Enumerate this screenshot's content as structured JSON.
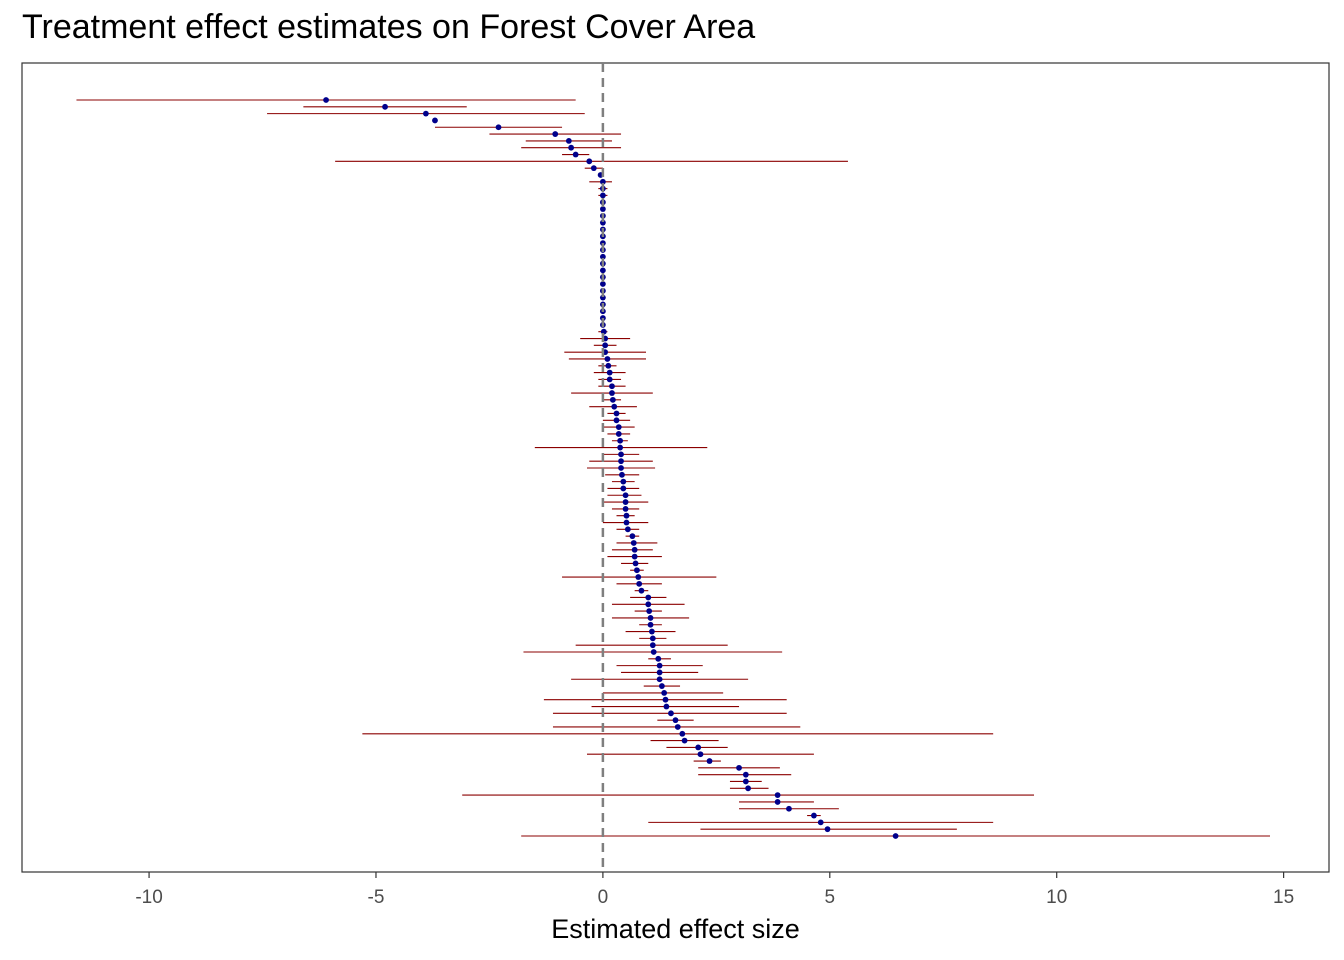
{
  "chart_data": {
    "type": "scatter",
    "title": "Treatment effect estimates on Forest Cover Area",
    "xlabel": "Estimated effect size",
    "ylabel": "",
    "xlim": [
      -12.8,
      16.0
    ],
    "xticks": [
      -10,
      -5,
      0,
      5,
      10,
      15
    ],
    "xtick_labels": [
      "-10",
      "-5",
      "0",
      "5",
      "10",
      "15"
    ],
    "reference_line_x": 0,
    "grid": false,
    "legend": "none",
    "colors": {
      "point": "#00008b",
      "interval": "#8b0000",
      "reference": "#7f7f7f",
      "frame": "#333333"
    },
    "estimates": [
      {
        "est": -6.1,
        "lo": -11.6,
        "hi": -0.6
      },
      {
        "est": -4.8,
        "lo": -6.6,
        "hi": -3.0
      },
      {
        "est": -3.9,
        "lo": -7.4,
        "hi": -0.4
      },
      {
        "est": -3.7,
        "lo": -3.7,
        "hi": -3.7
      },
      {
        "est": -2.3,
        "lo": -3.7,
        "hi": -0.9
      },
      {
        "est": -1.05,
        "lo": -2.5,
        "hi": 0.4
      },
      {
        "est": -0.75,
        "lo": -1.7,
        "hi": 0.2
      },
      {
        "est": -0.7,
        "lo": -1.8,
        "hi": 0.4
      },
      {
        "est": -0.6,
        "lo": -0.9,
        "hi": -0.3
      },
      {
        "est": -0.3,
        "lo": -5.9,
        "hi": 5.4
      },
      {
        "est": -0.2,
        "lo": -0.4,
        "hi": 0.0
      },
      {
        "est": -0.05,
        "lo": -0.1,
        "hi": 0.0
      },
      {
        "est": 0.0,
        "lo": -0.3,
        "hi": 0.2
      },
      {
        "est": 0.0,
        "lo": -0.1,
        "hi": 0.1
      },
      {
        "est": 0.0,
        "lo": -0.1,
        "hi": 0.1
      },
      {
        "est": 0.0,
        "lo": 0.0,
        "hi": 0.0
      },
      {
        "est": 0.0,
        "lo": 0.0,
        "hi": 0.0
      },
      {
        "est": 0.0,
        "lo": 0.0,
        "hi": 0.0
      },
      {
        "est": 0.0,
        "lo": 0.0,
        "hi": 0.0
      },
      {
        "est": 0.0,
        "lo": 0.0,
        "hi": 0.0
      },
      {
        "est": 0.0,
        "lo": 0.0,
        "hi": 0.0
      },
      {
        "est": 0.0,
        "lo": 0.0,
        "hi": 0.0
      },
      {
        "est": 0.0,
        "lo": 0.0,
        "hi": 0.0
      },
      {
        "est": 0.0,
        "lo": 0.0,
        "hi": 0.0
      },
      {
        "est": 0.0,
        "lo": 0.0,
        "hi": 0.0
      },
      {
        "est": 0.0,
        "lo": 0.0,
        "hi": 0.0
      },
      {
        "est": 0.0,
        "lo": 0.0,
        "hi": 0.0
      },
      {
        "est": 0.0,
        "lo": 0.0,
        "hi": 0.0
      },
      {
        "est": 0.0,
        "lo": 0.0,
        "hi": 0.0
      },
      {
        "est": 0.0,
        "lo": 0.0,
        "hi": 0.0
      },
      {
        "est": 0.0,
        "lo": 0.0,
        "hi": 0.0
      },
      {
        "est": 0.0,
        "lo": 0.0,
        "hi": 0.0
      },
      {
        "est": 0.0,
        "lo": 0.0,
        "hi": 0.0
      },
      {
        "est": 0.0,
        "lo": 0.0,
        "hi": 0.0
      },
      {
        "est": 0.02,
        "lo": -0.1,
        "hi": 0.1
      },
      {
        "est": 0.05,
        "lo": -0.5,
        "hi": 0.6
      },
      {
        "est": 0.05,
        "lo": -0.2,
        "hi": 0.3
      },
      {
        "est": 0.05,
        "lo": -0.85,
        "hi": 0.95
      },
      {
        "est": 0.1,
        "lo": -0.75,
        "hi": 0.95
      },
      {
        "est": 0.12,
        "lo": -0.1,
        "hi": 0.3
      },
      {
        "est": 0.15,
        "lo": -0.2,
        "hi": 0.5
      },
      {
        "est": 0.15,
        "lo": -0.1,
        "hi": 0.4
      },
      {
        "est": 0.2,
        "lo": -0.1,
        "hi": 0.5
      },
      {
        "est": 0.2,
        "lo": -0.7,
        "hi": 1.1
      },
      {
        "est": 0.22,
        "lo": 0.0,
        "hi": 0.4
      },
      {
        "est": 0.25,
        "lo": -0.3,
        "hi": 0.75
      },
      {
        "est": 0.3,
        "lo": 0.1,
        "hi": 0.5
      },
      {
        "est": 0.3,
        "lo": 0.0,
        "hi": 0.6
      },
      {
        "est": 0.35,
        "lo": 0.0,
        "hi": 0.7
      },
      {
        "est": 0.35,
        "lo": 0.1,
        "hi": 0.6
      },
      {
        "est": 0.38,
        "lo": 0.2,
        "hi": 0.55
      },
      {
        "est": 0.38,
        "lo": -1.5,
        "hi": 2.3
      },
      {
        "est": 0.4,
        "lo": 0.0,
        "hi": 0.8
      },
      {
        "est": 0.4,
        "lo": -0.3,
        "hi": 1.1
      },
      {
        "est": 0.4,
        "lo": -0.35,
        "hi": 1.15
      },
      {
        "est": 0.42,
        "lo": 0.05,
        "hi": 0.8
      },
      {
        "est": 0.45,
        "lo": 0.2,
        "hi": 0.7
      },
      {
        "est": 0.45,
        "lo": 0.1,
        "hi": 0.8
      },
      {
        "est": 0.5,
        "lo": 0.1,
        "hi": 0.85
      },
      {
        "est": 0.5,
        "lo": 0.0,
        "hi": 1.0
      },
      {
        "est": 0.5,
        "lo": 0.2,
        "hi": 0.8
      },
      {
        "est": 0.52,
        "lo": 0.3,
        "hi": 0.7
      },
      {
        "est": 0.52,
        "lo": 0.0,
        "hi": 1.0
      },
      {
        "est": 0.55,
        "lo": 0.3,
        "hi": 0.8
      },
      {
        "est": 0.65,
        "lo": 0.5,
        "hi": 0.8
      },
      {
        "est": 0.68,
        "lo": 0.3,
        "hi": 1.2
      },
      {
        "est": 0.7,
        "lo": 0.2,
        "hi": 1.1
      },
      {
        "est": 0.7,
        "lo": 0.1,
        "hi": 1.3
      },
      {
        "est": 0.72,
        "lo": 0.4,
        "hi": 1.0
      },
      {
        "est": 0.75,
        "lo": 0.6,
        "hi": 0.9
      },
      {
        "est": 0.78,
        "lo": -0.9,
        "hi": 2.5
      },
      {
        "est": 0.8,
        "lo": 0.3,
        "hi": 1.3
      },
      {
        "est": 0.85,
        "lo": 0.7,
        "hi": 1.0
      },
      {
        "est": 1.0,
        "lo": 0.6,
        "hi": 1.4
      },
      {
        "est": 1.0,
        "lo": 0.2,
        "hi": 1.8
      },
      {
        "est": 1.02,
        "lo": 0.7,
        "hi": 1.3
      },
      {
        "est": 1.05,
        "lo": 0.2,
        "hi": 1.9
      },
      {
        "est": 1.05,
        "lo": 0.8,
        "hi": 1.3
      },
      {
        "est": 1.08,
        "lo": 0.5,
        "hi": 1.6
      },
      {
        "est": 1.1,
        "lo": 0.8,
        "hi": 1.4
      },
      {
        "est": 1.1,
        "lo": -0.6,
        "hi": 2.75
      },
      {
        "est": 1.12,
        "lo": -1.75,
        "hi": 3.95
      },
      {
        "est": 1.22,
        "lo": 1.0,
        "hi": 1.5
      },
      {
        "est": 1.25,
        "lo": 0.3,
        "hi": 2.2
      },
      {
        "est": 1.25,
        "lo": 0.4,
        "hi": 2.1
      },
      {
        "est": 1.25,
        "lo": -0.7,
        "hi": 3.2
      },
      {
        "est": 1.3,
        "lo": 0.9,
        "hi": 1.7
      },
      {
        "est": 1.35,
        "lo": 0.0,
        "hi": 2.65
      },
      {
        "est": 1.38,
        "lo": -1.3,
        "hi": 4.05
      },
      {
        "est": 1.4,
        "lo": -0.25,
        "hi": 3.0
      },
      {
        "est": 1.5,
        "lo": -1.1,
        "hi": 4.05
      },
      {
        "est": 1.6,
        "lo": 1.2,
        "hi": 2.0
      },
      {
        "est": 1.65,
        "lo": -1.1,
        "hi": 4.35
      },
      {
        "est": 1.75,
        "lo": -5.3,
        "hi": 8.6
      },
      {
        "est": 1.8,
        "lo": 1.05,
        "hi": 2.55
      },
      {
        "est": 2.1,
        "lo": 1.4,
        "hi": 2.75
      },
      {
        "est": 2.15,
        "lo": -0.35,
        "hi": 4.65
      },
      {
        "est": 2.35,
        "lo": 2.0,
        "hi": 2.6
      },
      {
        "est": 3.0,
        "lo": 2.1,
        "hi": 3.9
      },
      {
        "est": 3.15,
        "lo": 2.1,
        "hi": 4.15
      },
      {
        "est": 3.15,
        "lo": 2.8,
        "hi": 3.5
      },
      {
        "est": 3.2,
        "lo": 2.8,
        "hi": 3.65
      },
      {
        "est": 3.85,
        "lo": -3.1,
        "hi": 9.5
      },
      {
        "est": 3.85,
        "lo": 3.0,
        "hi": 4.65
      },
      {
        "est": 4.1,
        "lo": 3.0,
        "hi": 5.2
      },
      {
        "est": 4.65,
        "lo": 4.5,
        "hi": 4.8
      },
      {
        "est": 4.8,
        "lo": 1.0,
        "hi": 8.6
      },
      {
        "est": 4.95,
        "lo": 2.15,
        "hi": 7.8
      },
      {
        "est": 6.45,
        "lo": -1.8,
        "hi": 14.7
      }
    ]
  }
}
